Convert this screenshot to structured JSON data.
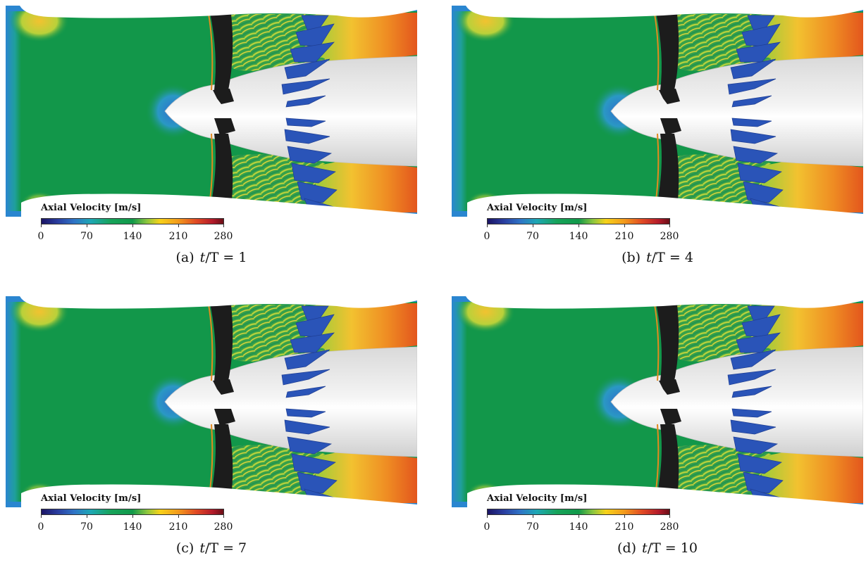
{
  "colorbar": {
    "title": "Axial Velocity [m/s]",
    "colors": [
      "#1b1464",
      "#2a3ea0",
      "#2f74c6",
      "#1ea7b4",
      "#17a35a",
      "#11994a",
      "#8cc63f",
      "#f6d21a",
      "#f39c1c",
      "#e14a24",
      "#b31b2a",
      "#6b0f17"
    ],
    "ticks": [
      "0",
      "70",
      "140",
      "210",
      "280"
    ],
    "tick_values": [
      0,
      70,
      140,
      210,
      280
    ],
    "range": [
      0,
      280
    ]
  },
  "field_colors": {
    "freestream": "#12974a",
    "inlet_edge": "#2a86d0",
    "stagnation": "#2f6fce",
    "blade_wake": "#2a54b8",
    "jet_core": "#e9641f",
    "jet_edge": "#f2c230",
    "nacelle": "#ffffff",
    "spinner": "#e6e6e6",
    "fan": "#1c1c1c"
  },
  "panels": [
    {
      "label": "(a)",
      "t_var": "t",
      "t_denom": "/T",
      "eq": " = ",
      "t_value": "1"
    },
    {
      "label": "(b)",
      "t_var": "t",
      "t_denom": "/T",
      "eq": " = ",
      "t_value": "4"
    },
    {
      "label": "(c)",
      "t_var": "t",
      "t_denom": "/T",
      "eq": " = ",
      "t_value": "7"
    },
    {
      "label": "(d)",
      "t_var": "t",
      "t_denom": "/T",
      "eq": " = ",
      "t_value": "10"
    }
  ]
}
